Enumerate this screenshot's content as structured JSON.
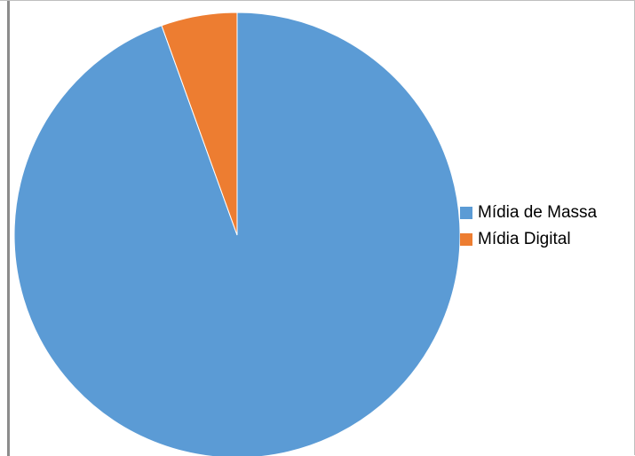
{
  "chart_data": {
    "type": "pie",
    "title": "",
    "legend_position": "right",
    "slices": [
      {
        "label": "Mídia de Massa",
        "value": 94.5,
        "color": "#5b9bd5"
      },
      {
        "label": "Mídia Digital",
        "value": 5.5,
        "color": "#ed7d31"
      }
    ]
  }
}
